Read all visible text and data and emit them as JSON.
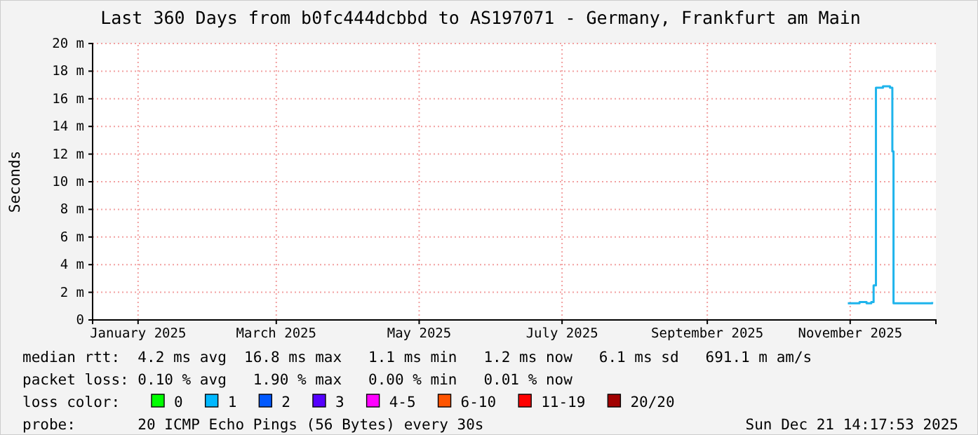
{
  "chart_data": {
    "type": "step",
    "title": "Last 360 Days from b0fc444dcbbd to AS197071 - Germany, Frankfurt am Main",
    "ylabel": "Seconds",
    "xlim": [
      "2024-12-26T14:17",
      "2025-12-21T14:17"
    ],
    "xticks": [
      {
        "value": "2025-01-15",
        "label": "January 2025"
      },
      {
        "value": "2025-03-15",
        "label": "March 2025"
      },
      {
        "value": "2025-05-15",
        "label": "May 2025"
      },
      {
        "value": "2025-07-15",
        "label": "July 2025"
      },
      {
        "value": "2025-09-15",
        "label": "September 2025"
      },
      {
        "value": "2025-11-15",
        "label": "November 2025"
      }
    ],
    "ylim": [
      0,
      20
    ],
    "yticks": [
      0,
      {
        "value": 2,
        "label": "2 m"
      },
      {
        "value": 4,
        "label": "4 m"
      },
      {
        "value": 6,
        "label": "6 m"
      },
      {
        "value": 8,
        "label": "8 m"
      },
      {
        "value": 10,
        "label": "10 m"
      },
      {
        "value": 12,
        "label": "12 m"
      },
      {
        "value": 14,
        "label": "14 m"
      },
      {
        "value": 16,
        "label": "16 m"
      },
      {
        "value": 18,
        "label": "18 m"
      },
      {
        "value": 20,
        "label": "20 m"
      }
    ],
    "grid": true,
    "series": [
      {
        "color": "#1fb4ec",
        "x": [
          "2025-11-14",
          "2025-11-19",
          "2025-11-22",
          "2025-11-24",
          "2025-11-25",
          "2025-11-26",
          "2025-11-29",
          "2025-12-02",
          "2025-12-03",
          "2025-12-03T12:00",
          "2025-12-10",
          "2025-12-20"
        ],
        "values": [
          1.2,
          1.3,
          1.2,
          1.3,
          2.5,
          16.8,
          16.9,
          16.8,
          12.2,
          1.2,
          1.2,
          1.3
        ]
      }
    ],
    "annotations": [
      "median rtt:  4.2 ms avg  16.8 ms max   1.1 ms min   1.2 ms now   6.1 ms sd   691.1 m am/s",
      "packet loss: 0.10 % avg   1.90 % max   0.00 % min   0.01 % now",
      "loss color:",
      "0",
      "1",
      "2",
      "3",
      "4-5",
      "6-10",
      "11-19",
      "20/20",
      "probe:       20 ICMP Echo Pings (56 Bytes) every 30s",
      "Sun Dec 21 14:17:53 2025"
    ]
  }
}
